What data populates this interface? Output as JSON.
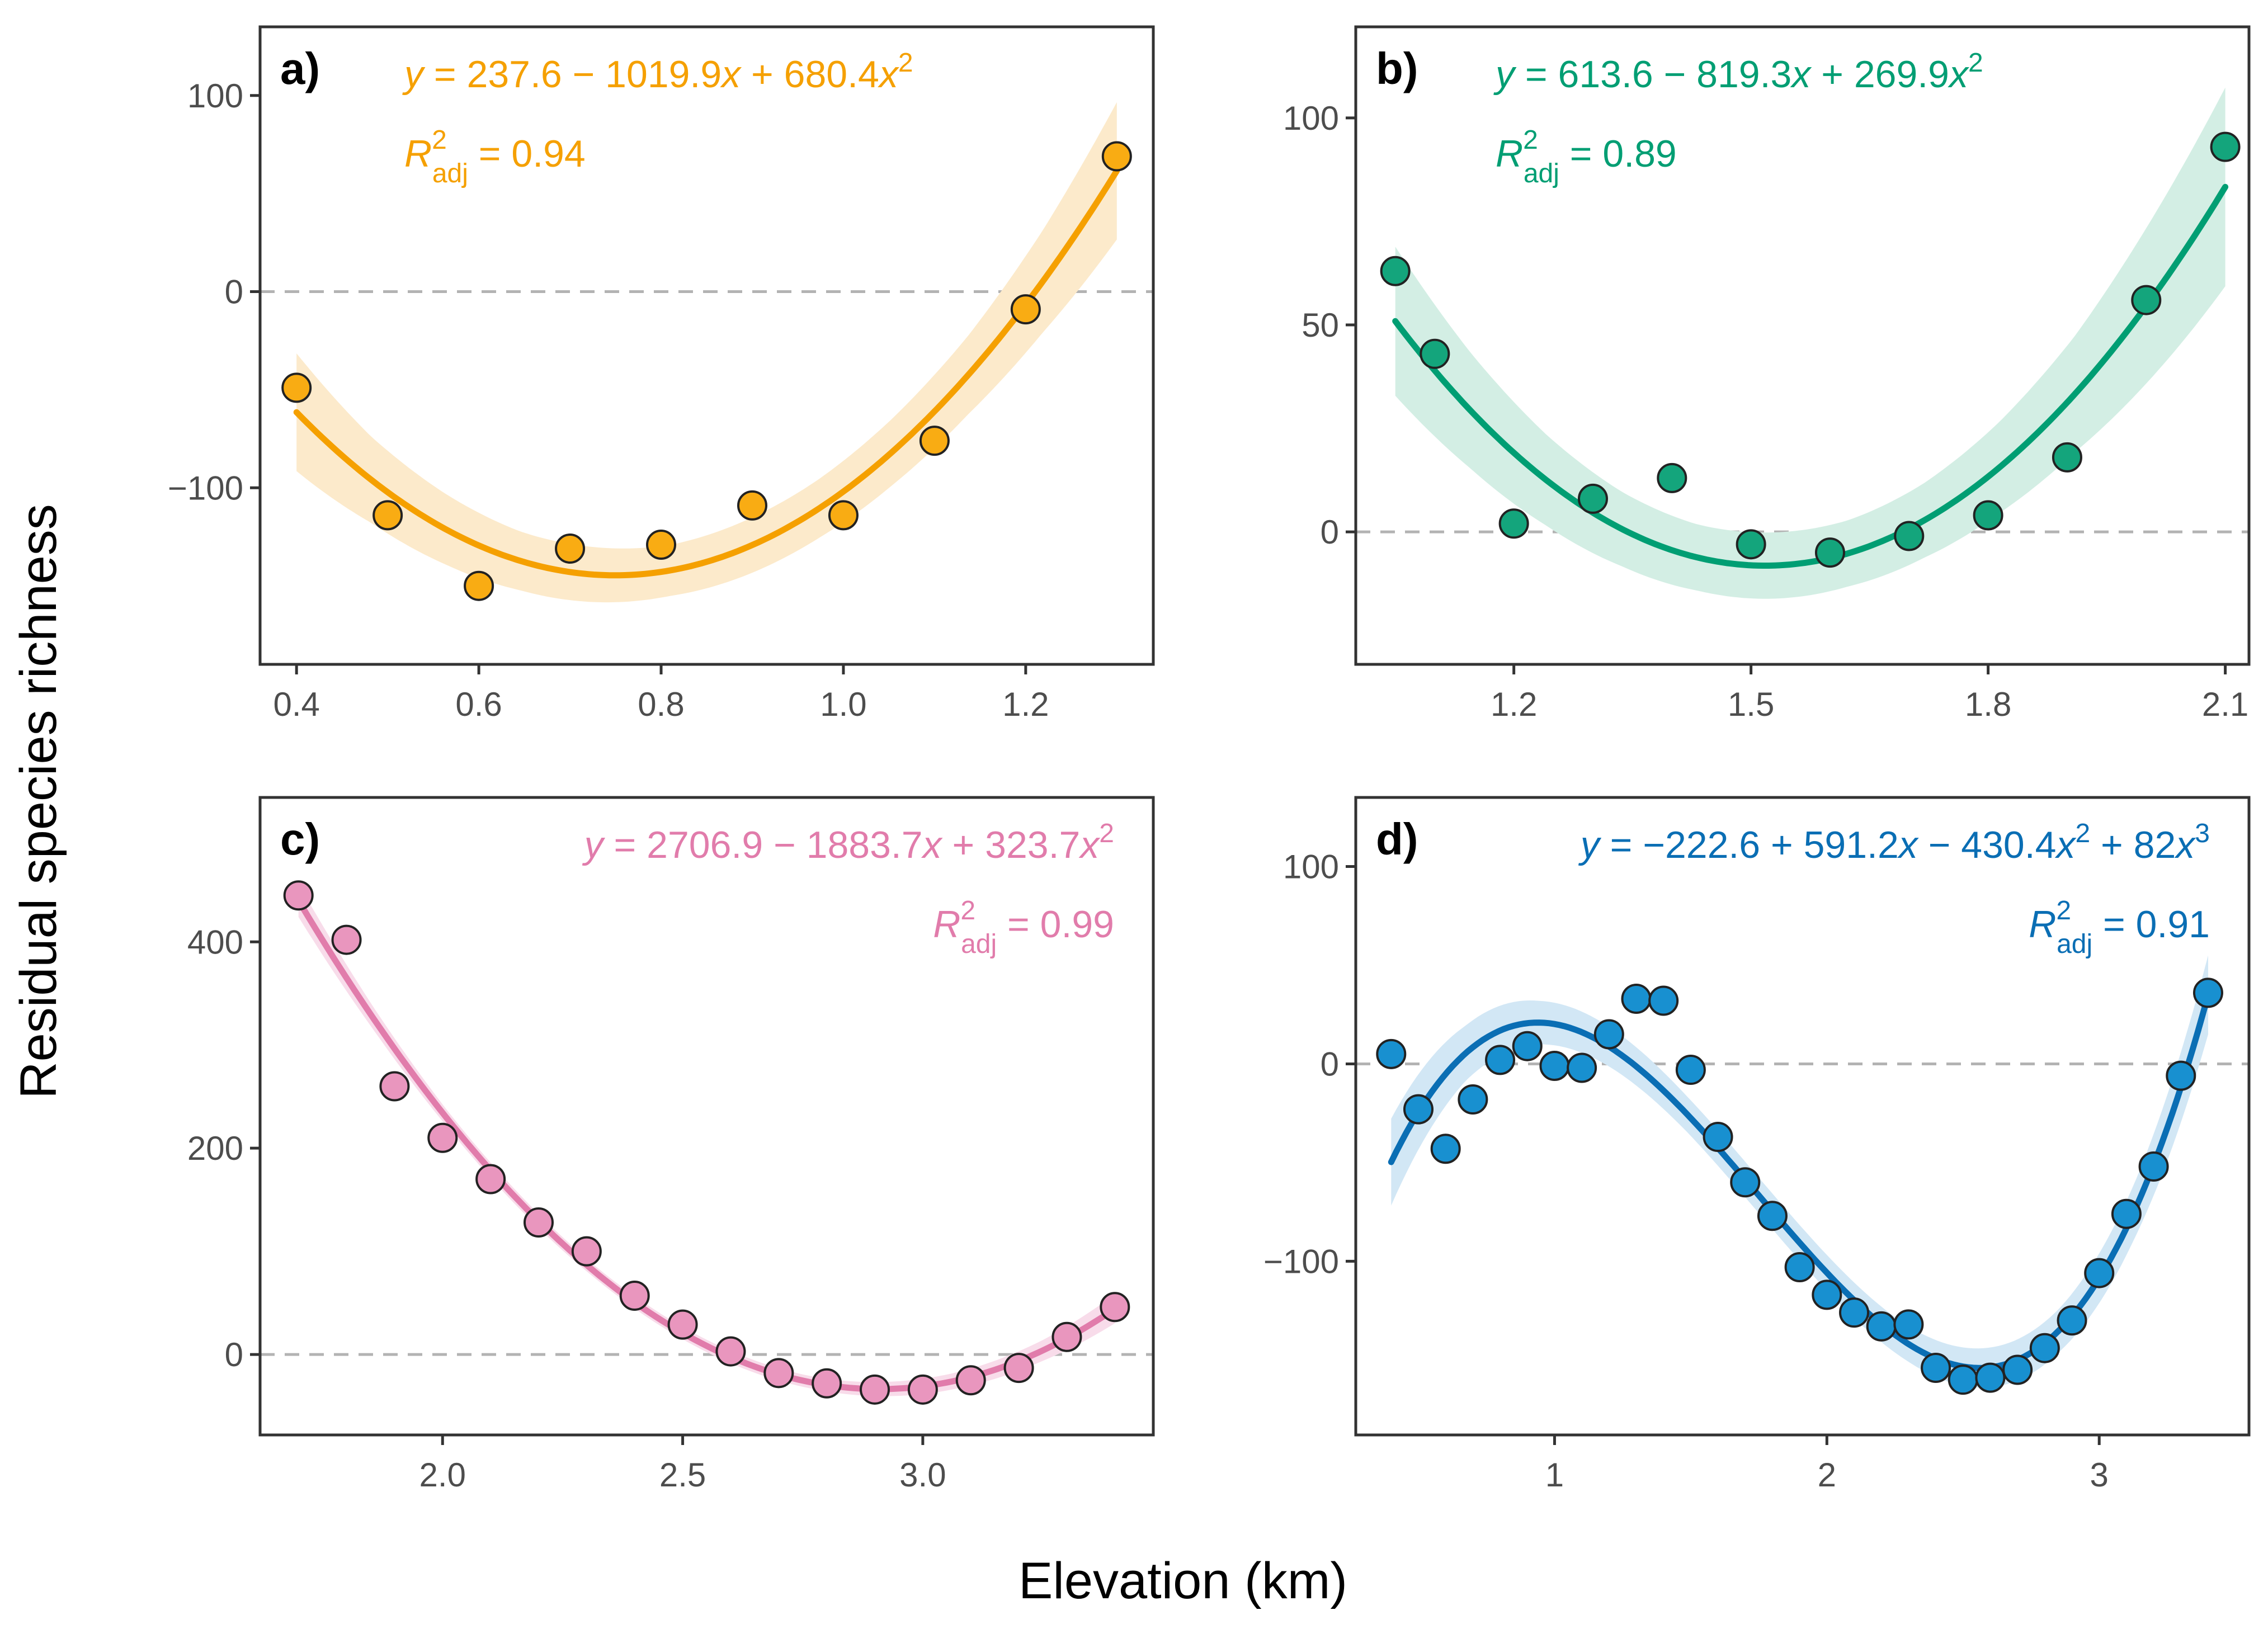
{
  "figure": {
    "xlabel": "Elevation (km)",
    "ylabel": "Residual species richness"
  },
  "chart_data": [
    {
      "type": "scatter",
      "panel": "a)",
      "color": "#F5A000",
      "fill": "#F9AC13",
      "band_color": "#FCEACB",
      "coef": [
        237.6,
        -1019.9,
        680.4
      ],
      "fit_range": [
        0.4,
        1.3
      ],
      "ci_halfwidth": [
        30,
        22,
        18,
        15,
        14,
        13,
        14,
        15,
        17,
        20,
        26,
        35
      ],
      "x": [
        0.4,
        0.5,
        0.6,
        0.7,
        0.8,
        0.9,
        1.0,
        1.1,
        1.2,
        1.3
      ],
      "y": [
        -49,
        -114,
        -150,
        -131,
        -129,
        -109,
        -114,
        -76,
        -9,
        69
      ],
      "xlim": [
        0.36,
        1.34
      ],
      "ylim": [
        -190,
        135
      ],
      "xticks": [
        0.4,
        0.6,
        0.8,
        1.0,
        1.2
      ],
      "xtick_labels": [
        "0.4",
        "0.6",
        "0.8",
        "1.0",
        "1.2"
      ],
      "yticks": [
        -100,
        0,
        100
      ],
      "ytick_labels": [
        "−100",
        "0",
        "100"
      ],
      "equation": {
        "pre": "y",
        "mid": " = 237.6 − 1019.9",
        "x1": "x",
        "mid2": " + 680.4",
        "x2": "x",
        "sup": "2",
        "tail": "",
        "x3": "",
        "sup3": ""
      },
      "r2": {
        "R": "R",
        "sup": "2",
        "sub": "adj",
        "val": " = 0.94"
      },
      "label_align": "left"
    },
    {
      "type": "scatter",
      "panel": "b)",
      "color": "#009E73",
      "fill": "#14A57C",
      "band_color": "#D3EEE4",
      "coef": [
        613.6,
        -819.3,
        269.9
      ],
      "fit_range": [
        1.05,
        2.1
      ],
      "ci_halfwidth": [
        18,
        14,
        11,
        9,
        8,
        8,
        8,
        9,
        11,
        14,
        19,
        24
      ],
      "x": [
        1.05,
        1.1,
        1.2,
        1.3,
        1.4,
        1.5,
        1.6,
        1.7,
        1.8,
        1.9,
        2.0,
        2.1
      ],
      "y": [
        63,
        43,
        2,
        8,
        13,
        -3,
        -5,
        -1,
        4,
        18,
        56,
        93
      ],
      "xlim": [
        1.0,
        2.13
      ],
      "ylim": [
        -32,
        122
      ],
      "xticks": [
        1.2,
        1.5,
        1.8,
        2.1
      ],
      "xtick_labels": [
        "1.2",
        "1.5",
        "1.8",
        "2.1"
      ],
      "yticks": [
        0,
        50,
        100
      ],
      "ytick_labels": [
        "0",
        "50",
        "100"
      ],
      "equation": {
        "pre": "y",
        "mid": " = 613.6 − 819.3",
        "x1": "x",
        "mid2": " + 269.9",
        "x2": "x",
        "sup": "2",
        "tail": "",
        "x3": "",
        "sup3": ""
      },
      "r2": {
        "R": "R",
        "sup": "2",
        "sub": "adj",
        "val": " = 0.89"
      },
      "label_align": "left"
    },
    {
      "type": "scatter",
      "panel": "c)",
      "color": "#E17CAB",
      "fill": "#E996BE",
      "band_color": "#F8DCEA",
      "coef": [
        2706.9,
        -1883.7,
        323.7
      ],
      "fit_range": [
        1.7,
        3.4
      ],
      "ci_halfwidth": [
        16,
        11,
        8,
        7,
        6,
        6,
        6,
        6,
        7,
        8,
        10,
        14
      ],
      "x": [
        1.7,
        1.8,
        1.9,
        2.0,
        2.1,
        2.2,
        2.3,
        2.4,
        2.5,
        2.6,
        2.7,
        2.8,
        2.9,
        3.0,
        3.1,
        3.2,
        3.3,
        3.4
      ],
      "y": [
        445,
        402,
        260,
        210,
        170,
        128,
        100,
        57,
        29,
        3,
        -18,
        -28,
        -34,
        -34,
        -25,
        -13,
        17,
        46
      ],
      "xlim": [
        1.62,
        3.48
      ],
      "ylim": [
        -78,
        540
      ],
      "xticks": [
        2.0,
        2.5,
        3.0
      ],
      "xtick_labels": [
        "2.0",
        "2.5",
        "3.0"
      ],
      "yticks": [
        0,
        200,
        400
      ],
      "ytick_labels": [
        "0",
        "200",
        "400"
      ],
      "equation": {
        "pre": "y",
        "mid": " = 2706.9 − 1883.7",
        "x1": "x",
        "mid2": " + 323.7",
        "x2": "x",
        "sup": "2",
        "tail": "",
        "x3": "",
        "sup3": ""
      },
      "r2": {
        "R": "R",
        "sup": "2",
        "sub": "adj",
        "val": " = 0.99"
      },
      "label_align": "right"
    },
    {
      "type": "scatter",
      "panel": "d)",
      "color": "#0A6EB4",
      "fill": "#1890D0",
      "band_color": "#D2E7F5",
      "coef": [
        -222.6,
        591.2,
        -430.4,
        82
      ],
      "fit_range": [
        0.4,
        3.4
      ],
      "ci_halfwidth": [
        22,
        14,
        11,
        10,
        9,
        9,
        9,
        9,
        10,
        11,
        14,
        20
      ],
      "x": [
        0.4,
        0.5,
        0.6,
        0.7,
        0.8,
        0.9,
        1.0,
        1.1,
        1.2,
        1.3,
        1.4,
        1.5,
        1.6,
        1.7,
        1.8,
        1.9,
        2.0,
        2.1,
        2.2,
        2.3,
        2.4,
        2.5,
        2.6,
        2.7,
        2.8,
        2.9,
        3.0,
        3.1,
        3.2,
        3.3,
        3.4
      ],
      "y": [
        5,
        -23,
        -43,
        -18,
        2,
        9,
        -1,
        -2,
        15,
        33,
        32,
        -3,
        -37,
        -60,
        -77,
        -103,
        -117,
        -126,
        -133,
        -132,
        -154,
        -160,
        -159,
        -155,
        -144,
        -130,
        -106,
        -76,
        -52,
        -6,
        36
      ],
      "xlim": [
        0.27,
        3.55
      ],
      "ylim": [
        -188,
        135
      ],
      "xticks": [
        1,
        2,
        3
      ],
      "xtick_labels": [
        "1",
        "2",
        "3"
      ],
      "yticks": [
        -100,
        0,
        100
      ],
      "ytick_labels": [
        "−100",
        "0",
        "100"
      ],
      "equation": {
        "pre": "y",
        "mid": " = −222.6 + 591.2",
        "x1": "x",
        "mid2": " − 430.4",
        "x2": "x",
        "sup": "2",
        "tail": " + 82",
        "x3": "x",
        "sup3": "3"
      },
      "r2": {
        "R": "R",
        "sup": "2",
        "sub": "adj",
        "val": " = 0.91"
      },
      "label_align": "right"
    }
  ]
}
